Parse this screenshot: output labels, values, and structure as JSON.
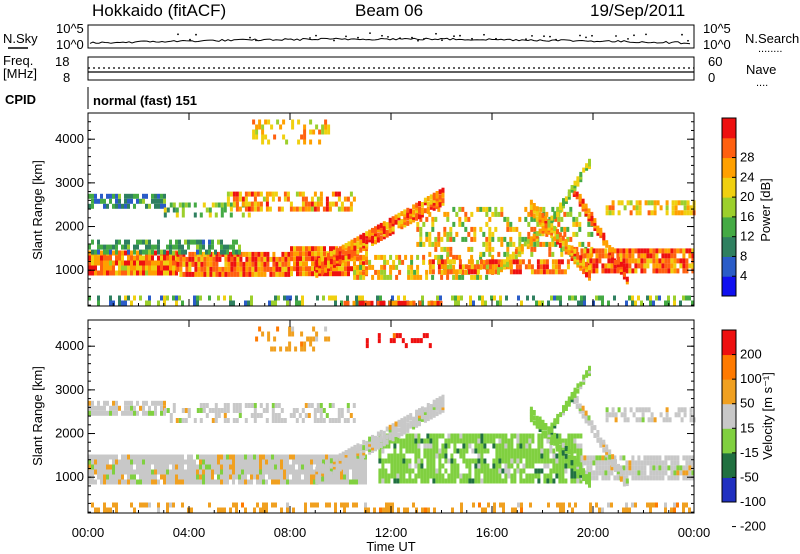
{
  "header": {
    "radar": "Hokkaido (fitACF)",
    "beam": "Beam 06",
    "date": "19/Sep/2011"
  },
  "noise_panel": {
    "left_label": "N.Sky",
    "right_label": "N.Search",
    "right_legend": "........",
    "left_ticks": [
      "10^5",
      "10^0"
    ],
    "right_ticks": [
      "10^5",
      "10^0"
    ]
  },
  "freq_panel": {
    "left_label_top": "Freq.",
    "left_label_unit": "[MHz]",
    "left_ticks": [
      "18",
      "8"
    ],
    "right_label": "Nave",
    "right_legend": "....",
    "right_ticks": [
      "60",
      "0"
    ]
  },
  "cpid": {
    "label": "CPID",
    "text": "normal (fast) 151"
  },
  "x_axis": {
    "label": "Time UT",
    "ticks": [
      "00:00",
      "04:00",
      "08:00",
      "12:00",
      "16:00",
      "20:00",
      "00:00"
    ]
  },
  "chart_data": [
    {
      "type": "heatmap",
      "name": "power",
      "ylabel": "Slant Range [km]",
      "yticks": [
        1000,
        2000,
        3000,
        4000
      ],
      "ylim": [
        180,
        4600
      ],
      "xlim_hours": [
        0,
        24
      ],
      "colorbar": {
        "label": "Power [dB]",
        "ticks": [
          "4",
          "8",
          "12",
          "16",
          "20",
          "24",
          "28"
        ],
        "range": [
          0,
          30
        ]
      },
      "palette": [
        "#1010f0",
        "#2a5cc8",
        "#2f8060",
        "#44aa44",
        "#9ccf2c",
        "#f0d010",
        "#ffa000",
        "#ff6010",
        "#ee1010"
      ],
      "bands": [
        {
          "t0": 0.0,
          "t1": 3.5,
          "r0": 880,
          "r1": 1450,
          "pmin": 16,
          "pmax": 30,
          "density": 0.95
        },
        {
          "t0": 3.5,
          "t1": 8.0,
          "r0": 900,
          "r1": 1420,
          "pmin": 18,
          "pmax": 30,
          "density": 0.95
        },
        {
          "t0": 8.0,
          "t1": 11.0,
          "r0": 920,
          "r1": 1550,
          "pmin": 18,
          "pmax": 30,
          "density": 0.9
        },
        {
          "t0": 0.0,
          "t1": 6.0,
          "r0": 1450,
          "r1": 1700,
          "pmin": 6,
          "pmax": 14,
          "density": 0.6
        },
        {
          "t0": 0.0,
          "t1": 3.0,
          "r0": 2450,
          "r1": 2750,
          "pmin": 4,
          "pmax": 14,
          "density": 0.75
        },
        {
          "t0": 3.0,
          "t1": 6.5,
          "r0": 2300,
          "r1": 2550,
          "pmin": 8,
          "pmax": 18,
          "density": 0.55
        },
        {
          "t0": 5.5,
          "t1": 10.5,
          "r0": 2450,
          "r1": 2800,
          "pmin": 16,
          "pmax": 28,
          "density": 0.6
        },
        {
          "t0": 6.5,
          "t1": 9.5,
          "r0": 3900,
          "r1": 4450,
          "pmin": 14,
          "pmax": 26,
          "density": 0.35
        },
        {
          "t0": 10.5,
          "t1": 16.0,
          "r0": 850,
          "r1": 1350,
          "pmin": 12,
          "pmax": 26,
          "density": 0.5
        },
        {
          "t0": 13.5,
          "t1": 19.0,
          "r0": 950,
          "r1": 1250,
          "pmin": 18,
          "pmax": 28,
          "density": 0.75
        },
        {
          "t0": 13.0,
          "t1": 20.0,
          "r0": 1350,
          "r1": 2450,
          "pmin": 10,
          "pmax": 26,
          "density": 0.4
        },
        {
          "t0": 19.5,
          "t1": 24.0,
          "r0": 950,
          "r1": 1500,
          "pmin": 18,
          "pmax": 30,
          "density": 0.9
        },
        {
          "t0": 20.5,
          "t1": 24.0,
          "r0": 2350,
          "r1": 2600,
          "pmin": 14,
          "pmax": 24,
          "density": 0.55
        },
        {
          "t0": 0.0,
          "t1": 24.0,
          "r0": 200,
          "r1": 420,
          "pmin": 4,
          "pmax": 20,
          "density": 0.35
        },
        {
          "t0": 10.0,
          "t1": 14.0,
          "r0": 200,
          "r1": 300,
          "pmin": 22,
          "pmax": 30,
          "density": 0.8
        }
      ],
      "streaks": [
        {
          "t0": 9.0,
          "t1": 14.0,
          "r0": 1100,
          "r1": 2750,
          "w": 320,
          "pmin": 18,
          "pmax": 30
        },
        {
          "t0": 17.5,
          "t1": 19.8,
          "r0": 2500,
          "r1": 1000,
          "w": 250,
          "pmin": 16,
          "pmax": 28
        },
        {
          "t0": 19.2,
          "t1": 21.3,
          "r0": 2900,
          "r1": 900,
          "w": 220,
          "pmin": 20,
          "pmax": 30
        },
        {
          "t0": 16.2,
          "t1": 18.2,
          "r0": 1100,
          "r1": 2100,
          "w": 180,
          "pmin": 14,
          "pmax": 24
        },
        {
          "t0": 18.2,
          "t1": 19.8,
          "r0": 2100,
          "r1": 3500,
          "w": 140,
          "pmin": 10,
          "pmax": 20
        }
      ]
    },
    {
      "type": "heatmap",
      "name": "velocity",
      "ylabel": "Slant Range [km]",
      "yticks": [
        1000,
        2000,
        3000,
        4000
      ],
      "ylim": [
        180,
        4600
      ],
      "xlim_hours": [
        0,
        24
      ],
      "colorbar": {
        "label": "Velocity [m s⁻¹]",
        "ticks": [
          "200",
          "100",
          "50",
          "15",
          "-15",
          "-50",
          "-100",
          "-200"
        ]
      },
      "palette": [
        "#2030c0",
        "#207040",
        "#80d040",
        "#c8c8c8",
        "#f0a020",
        "#ff7a00",
        "#ee1010"
      ],
      "bands": [
        {
          "t0": 0.0,
          "t1": 11.0,
          "r0": 880,
          "r1": 1520,
          "cls": 3,
          "density": 0.93
        },
        {
          "t0": 0.0,
          "t1": 3.0,
          "r0": 2450,
          "r1": 2750,
          "cls": 3,
          "density": 0.7
        },
        {
          "t0": 3.0,
          "t1": 10.5,
          "r0": 2300,
          "r1": 2700,
          "cls": 3,
          "density": 0.45
        },
        {
          "t0": 6.5,
          "t1": 9.5,
          "r0": 3900,
          "r1": 4450,
          "cls": 4,
          "density": 0.25
        },
        {
          "t0": 11.5,
          "t1": 19.5,
          "r0": 900,
          "r1": 2000,
          "cls": 2,
          "density": 0.8
        },
        {
          "t0": 19.5,
          "t1": 24.0,
          "r0": 950,
          "r1": 1500,
          "cls": 3,
          "density": 0.9
        },
        {
          "t0": 20.5,
          "t1": 24.0,
          "r0": 2350,
          "r1": 2600,
          "cls": 3,
          "density": 0.55
        },
        {
          "t0": 0.0,
          "t1": 24.0,
          "r0": 200,
          "r1": 420,
          "cls": 4,
          "density": 0.35
        },
        {
          "t0": 11.0,
          "t1": 13.5,
          "r0": 4050,
          "r1": 4300,
          "cls": 6,
          "density": 0.3
        }
      ],
      "streaks": [
        {
          "t0": 9.0,
          "t1": 14.0,
          "r0": 1100,
          "r1": 2750,
          "w": 320,
          "cls": 3
        },
        {
          "t0": 17.5,
          "t1": 19.8,
          "r0": 2500,
          "r1": 1000,
          "w": 250,
          "cls": 2
        },
        {
          "t0": 19.2,
          "t1": 21.3,
          "r0": 2900,
          "r1": 900,
          "w": 220,
          "cls": 3
        },
        {
          "t0": 18.2,
          "t1": 19.8,
          "r0": 2100,
          "r1": 3500,
          "w": 140,
          "cls": 2
        }
      ]
    }
  ]
}
